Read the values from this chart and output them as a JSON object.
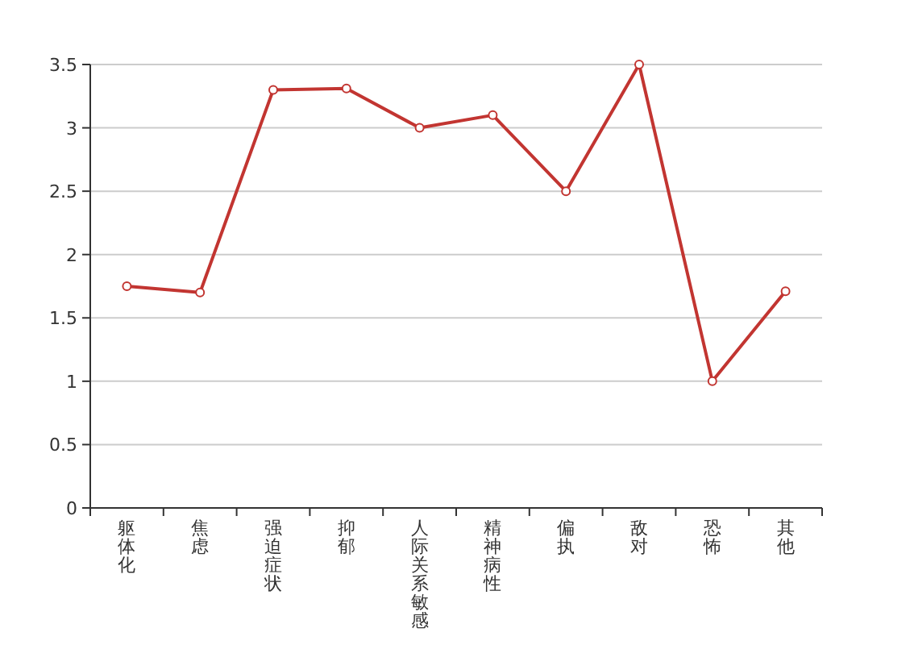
{
  "chart_data": {
    "type": "line",
    "categories": [
      "躯体化",
      "焦虑",
      "强迫症状",
      "抑郁",
      "人际关系敏感",
      "精神病性",
      "偏执",
      "敌对",
      "恐怖",
      "其他"
    ],
    "series": [
      {
        "color": "#c23531",
        "values": [
          1.75,
          1.7,
          3.3,
          3.31,
          3.0,
          3.1,
          2.5,
          3.5,
          1.0,
          1.71
        ]
      }
    ],
    "ylim": [
      0,
      3.5
    ],
    "yticks": [
      0,
      0.5,
      1,
      1.5,
      2,
      2.5,
      3,
      3.5
    ],
    "grid": "y",
    "marker": "circle",
    "line_style": "solid"
  }
}
